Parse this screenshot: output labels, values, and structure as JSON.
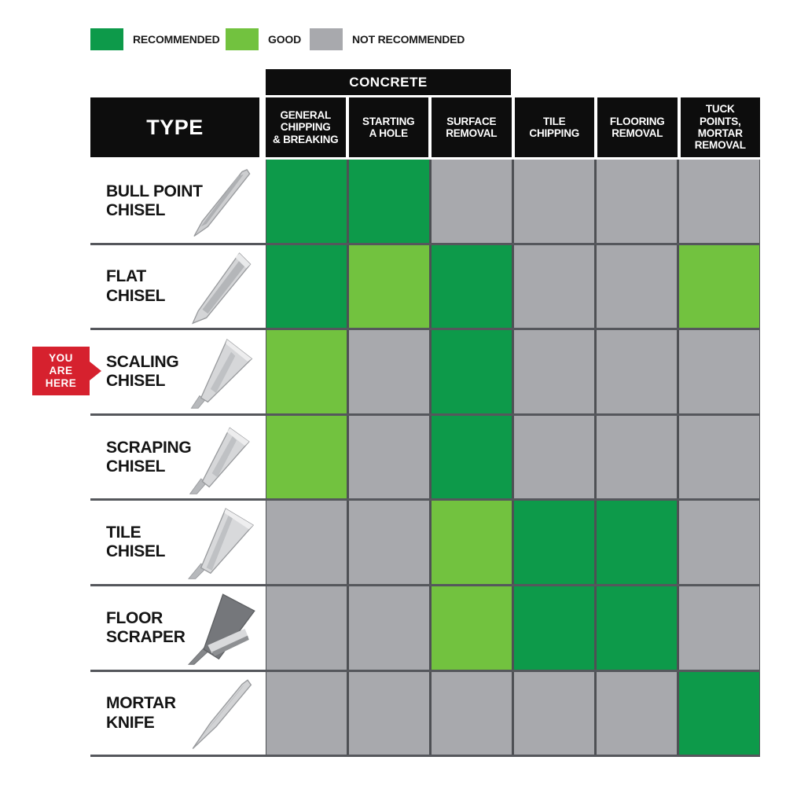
{
  "legend": {
    "items": [
      {
        "label": "RECOMMENDED",
        "status": "recommended"
      },
      {
        "label": "GOOD",
        "status": "good"
      },
      {
        "label": "NOT RECOMMENDED",
        "status": "not_recommended"
      }
    ]
  },
  "header": {
    "group_label": "CONCRETE",
    "type_label": "TYPE",
    "columns": [
      {
        "label": "GENERAL\nCHIPPING\n& BREAKING"
      },
      {
        "label": "STARTING\nA HOLE"
      },
      {
        "label": "SURFACE\nREMOVAL"
      },
      {
        "label": "TILE\nCHIPPING"
      },
      {
        "label": "FLOORING\nREMOVAL"
      },
      {
        "label": "TUCK\nPOINTS,\nMORTAR\nREMOVAL"
      }
    ]
  },
  "you_are_here": {
    "label": "YOU\nARE\nHERE",
    "row": "SCALING CHISEL"
  },
  "colors": {
    "recommended": "#0d9a4a",
    "good": "#72c23f",
    "not_recommended": "#a8a9ad",
    "header_bg": "#0d0d0d",
    "marker_red": "#d6212e",
    "separator": "#55575c"
  },
  "rows": [
    {
      "label": "BULL POINT\nCHISEL",
      "icon": "bull-point-chisel-icon",
      "statuses": [
        "recommended",
        "recommended",
        "not_recommended",
        "not_recommended",
        "not_recommended",
        "not_recommended"
      ]
    },
    {
      "label": "FLAT\nCHISEL",
      "icon": "flat-chisel-icon",
      "statuses": [
        "recommended",
        "good",
        "recommended",
        "not_recommended",
        "not_recommended",
        "good"
      ]
    },
    {
      "label": "SCALING\nCHISEL",
      "icon": "scaling-chisel-icon",
      "you_are_here": true,
      "statuses": [
        "good",
        "not_recommended",
        "recommended",
        "not_recommended",
        "not_recommended",
        "not_recommended"
      ]
    },
    {
      "label": "SCRAPING\nCHISEL",
      "icon": "scraping-chisel-icon",
      "statuses": [
        "good",
        "not_recommended",
        "recommended",
        "not_recommended",
        "not_recommended",
        "not_recommended"
      ]
    },
    {
      "label": "TILE\nCHISEL",
      "icon": "tile-chisel-icon",
      "statuses": [
        "not_recommended",
        "not_recommended",
        "good",
        "recommended",
        "recommended",
        "not_recommended"
      ]
    },
    {
      "label": "FLOOR\nSCRAPER",
      "icon": "floor-scraper-icon",
      "statuses": [
        "not_recommended",
        "not_recommended",
        "good",
        "recommended",
        "recommended",
        "not_recommended"
      ]
    },
    {
      "label": "MORTAR\nKNIFE",
      "icon": "mortar-knife-icon",
      "statuses": [
        "not_recommended",
        "not_recommended",
        "not_recommended",
        "not_recommended",
        "not_recommended",
        "recommended"
      ]
    }
  ],
  "chart_data": {
    "type": "heatmap",
    "title": "",
    "column_group": {
      "label": "CONCRETE",
      "columns_spanned": [
        0,
        1,
        2
      ]
    },
    "columns": [
      "GENERAL CHIPPING & BREAKING",
      "STARTING A HOLE",
      "SURFACE REMOVAL",
      "TILE CHIPPING",
      "FLOORING REMOVAL",
      "TUCK POINTS, MORTAR REMOVAL"
    ],
    "rows": [
      "BULL POINT CHISEL",
      "FLAT CHISEL",
      "SCALING CHISEL",
      "SCRAPING CHISEL",
      "TILE CHISEL",
      "FLOOR SCRAPER",
      "MORTAR KNIFE"
    ],
    "values": [
      [
        "RECOMMENDED",
        "RECOMMENDED",
        "NOT RECOMMENDED",
        "NOT RECOMMENDED",
        "NOT RECOMMENDED",
        "NOT RECOMMENDED"
      ],
      [
        "RECOMMENDED",
        "GOOD",
        "RECOMMENDED",
        "NOT RECOMMENDED",
        "NOT RECOMMENDED",
        "GOOD"
      ],
      [
        "GOOD",
        "NOT RECOMMENDED",
        "RECOMMENDED",
        "NOT RECOMMENDED",
        "NOT RECOMMENDED",
        "NOT RECOMMENDED"
      ],
      [
        "GOOD",
        "NOT RECOMMENDED",
        "RECOMMENDED",
        "NOT RECOMMENDED",
        "NOT RECOMMENDED",
        "NOT RECOMMENDED"
      ],
      [
        "NOT RECOMMENDED",
        "NOT RECOMMENDED",
        "GOOD",
        "RECOMMENDED",
        "RECOMMENDED",
        "NOT RECOMMENDED"
      ],
      [
        "NOT RECOMMENDED",
        "NOT RECOMMENDED",
        "GOOD",
        "RECOMMENDED",
        "RECOMMENDED",
        "NOT RECOMMENDED"
      ],
      [
        "NOT RECOMMENDED",
        "NOT RECOMMENDED",
        "NOT RECOMMENDED",
        "NOT RECOMMENDED",
        "NOT RECOMMENDED",
        "RECOMMENDED"
      ]
    ],
    "legend_entries": [
      "RECOMMENDED",
      "GOOD",
      "NOT RECOMMENDED"
    ],
    "legend_position": "top-left",
    "annotation": {
      "text": "YOU ARE HERE",
      "row": "SCALING CHISEL"
    }
  }
}
